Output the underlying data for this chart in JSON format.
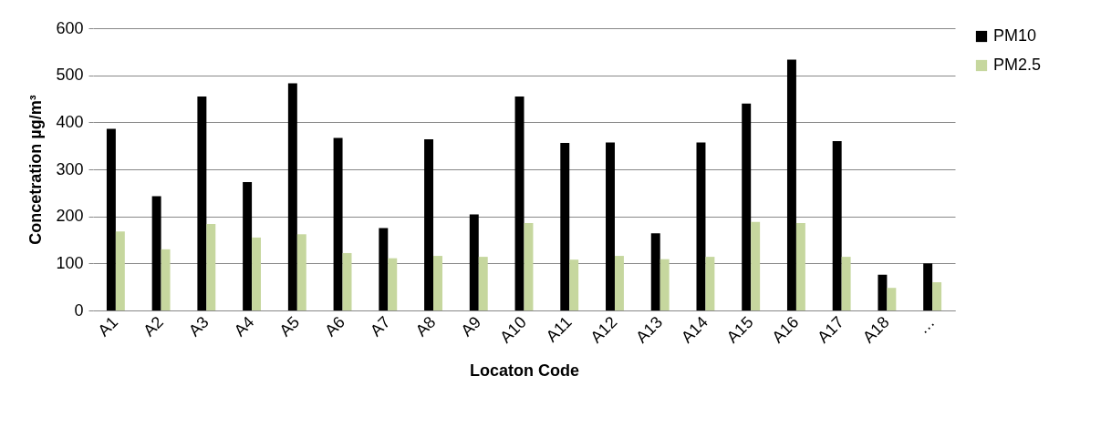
{
  "chart_data": {
    "type": "bar",
    "xlabel": "Locaton Code",
    "ylabel": "Concetration µg/m³",
    "categories": [
      "A1",
      "A2",
      "A3",
      "A4",
      "A5",
      "A6",
      "A7",
      "A8",
      "A9",
      "A10",
      "A11",
      "A12",
      "A13",
      "A14",
      "A15",
      "A16",
      "A17",
      "A18",
      "…"
    ],
    "series": [
      {
        "name": "PM10",
        "color": "#000000",
        "values": [
          386,
          243,
          455,
          273,
          483,
          367,
          175,
          364,
          204,
          455,
          356,
          357,
          164,
          357,
          440,
          533,
          360,
          76,
          100
        ]
      },
      {
        "name": "PM2.5",
        "color": "#c6d79e",
        "values": [
          168,
          130,
          184,
          155,
          162,
          122,
          111,
          116,
          114,
          186,
          108,
          116,
          109,
          114,
          188,
          186,
          114,
          48,
          60
        ]
      }
    ],
    "ylim": [
      0,
      600
    ],
    "yticks": [
      0,
      100,
      200,
      300,
      400,
      500,
      600
    ],
    "grid": "y",
    "legend": "right"
  }
}
